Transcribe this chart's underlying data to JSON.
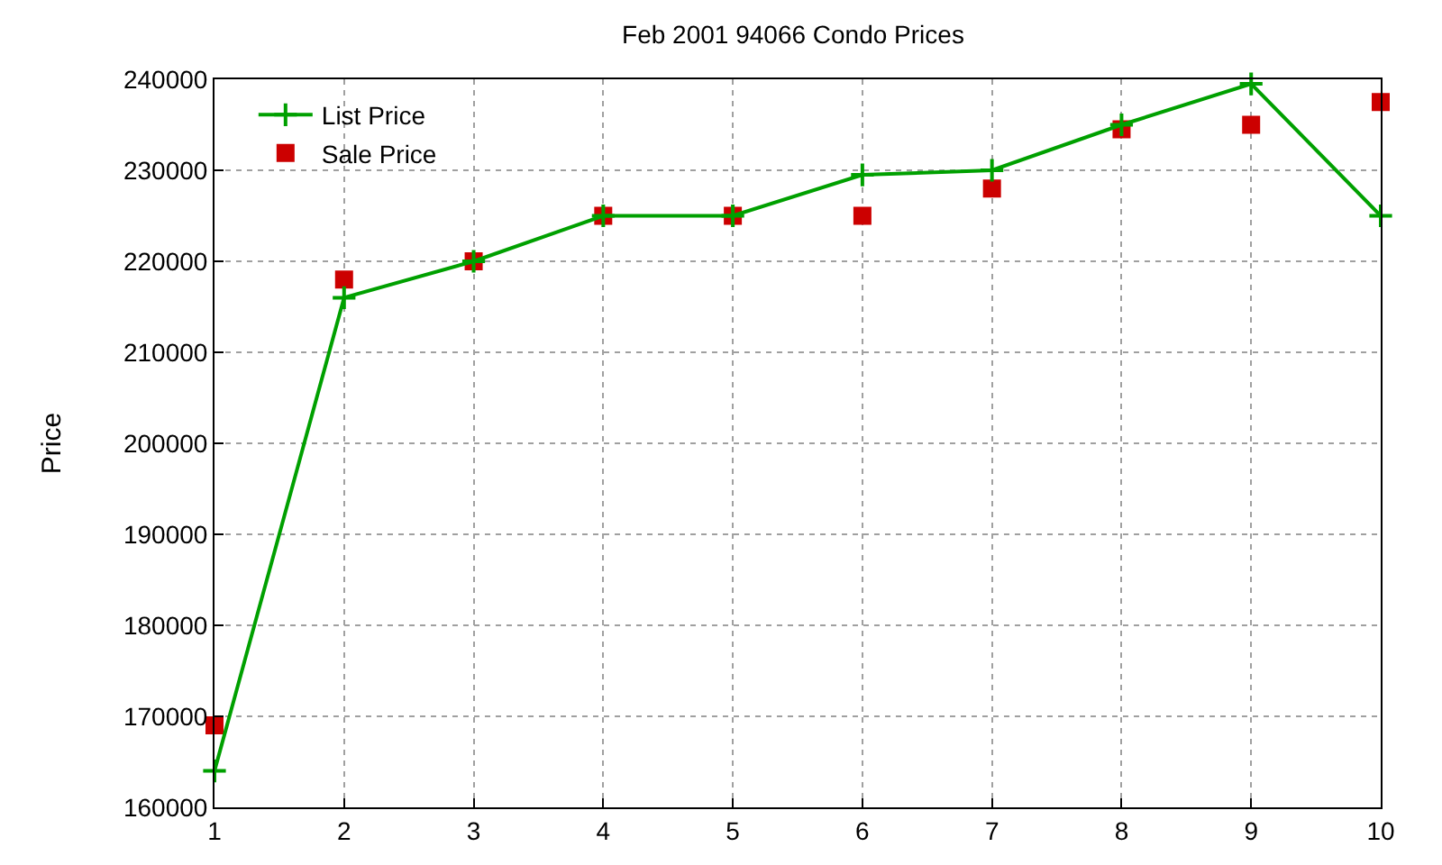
{
  "chart_data": {
    "type": "line",
    "title": "Feb 2001 94066 Condo Prices",
    "ylabel": "Price",
    "x": [
      1,
      2,
      3,
      4,
      5,
      6,
      7,
      8,
      9,
      10
    ],
    "series": [
      {
        "name": "List Price",
        "color": "#00a000",
        "marker": "cross",
        "values": [
          164000,
          216000,
          220000,
          225000,
          225000,
          229500,
          230000,
          235000,
          239500,
          225000
        ]
      },
      {
        "name": "Sale Price",
        "type": "scatter",
        "color": "#cc0000",
        "marker": "square",
        "values": [
          169000,
          218000,
          220000,
          225000,
          225000,
          225000,
          228000,
          234500,
          235000,
          237500
        ]
      }
    ],
    "xlim": [
      1,
      10
    ],
    "xticks": [
      1,
      2,
      3,
      4,
      5,
      6,
      7,
      8,
      9,
      10
    ],
    "ylim": [
      160000,
      240000
    ],
    "yticks": [
      160000,
      170000,
      180000,
      190000,
      200000,
      210000,
      220000,
      230000,
      240000
    ],
    "grid": true,
    "legend": "top left"
  }
}
